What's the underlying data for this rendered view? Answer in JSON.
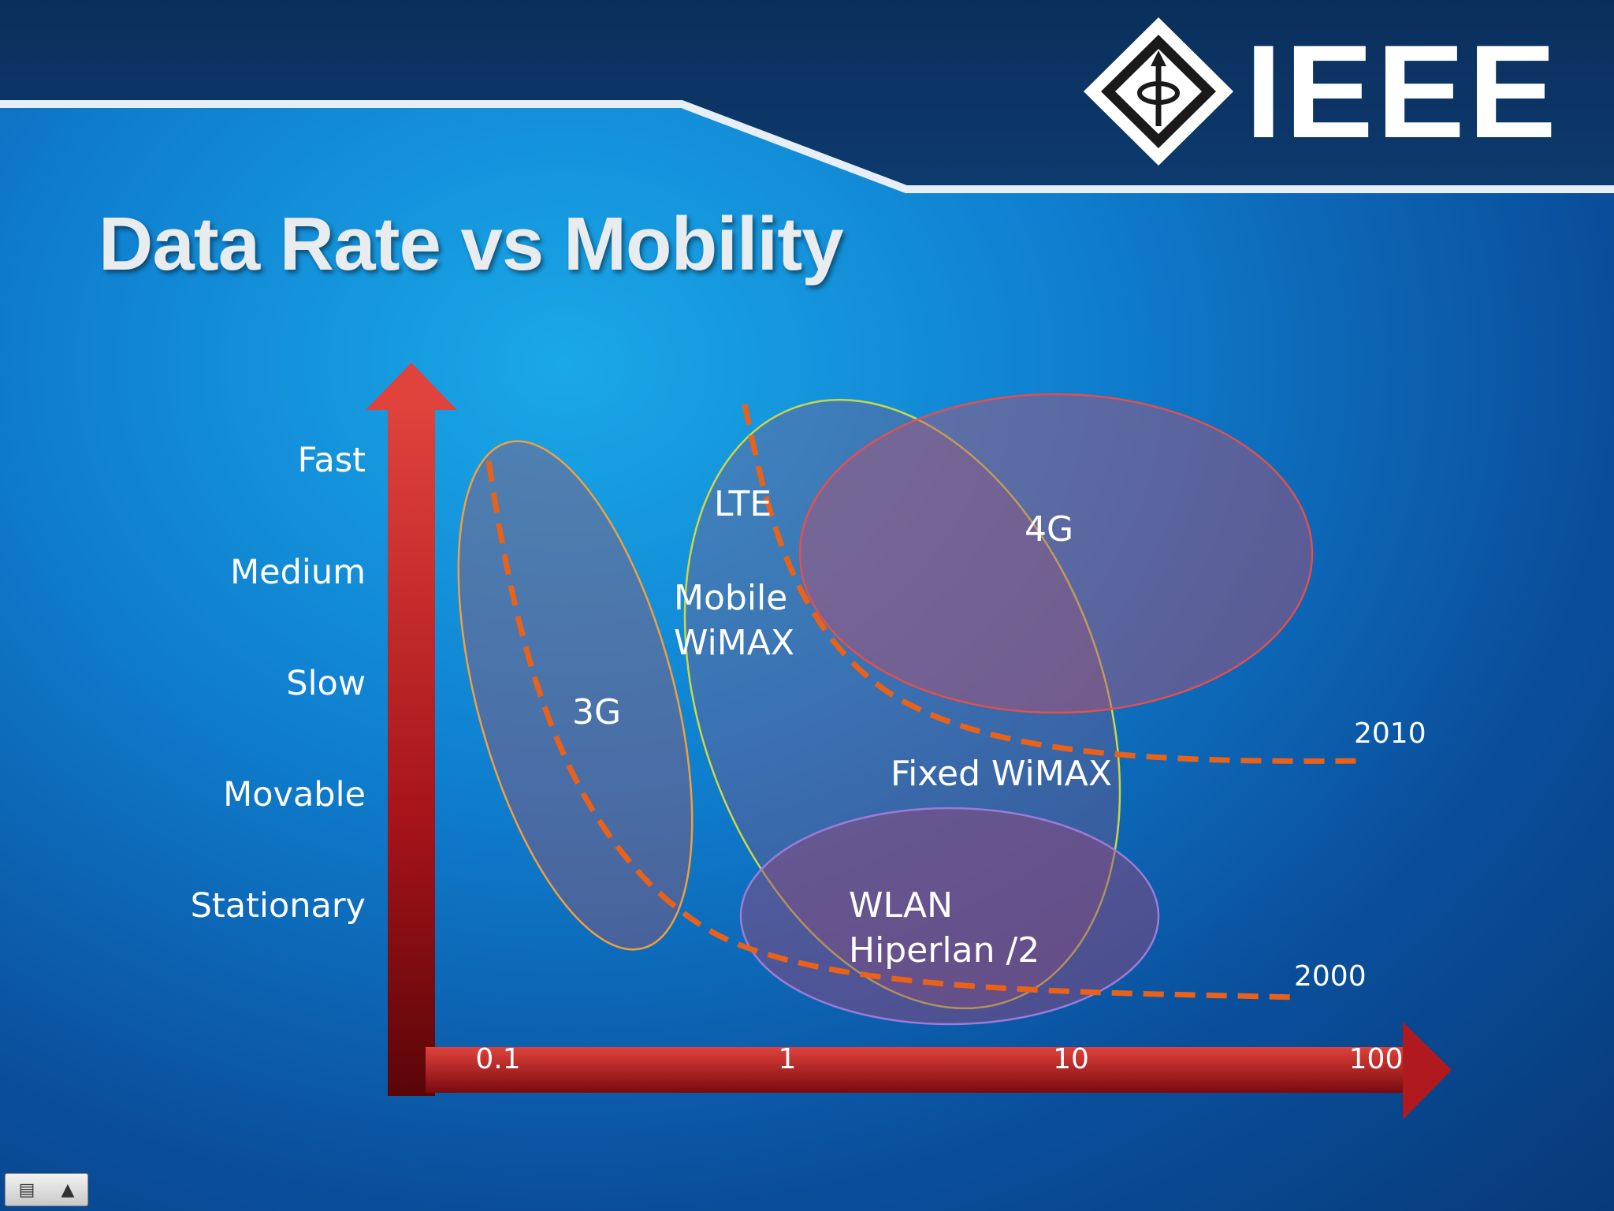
{
  "slide": {
    "title": "Data Rate vs Mobility",
    "logo_text": "IEEE"
  },
  "y_axis": {
    "labels": [
      "Fast",
      "Medium",
      "Slow",
      "Movable",
      "Stationary"
    ]
  },
  "x_axis": {
    "labels": [
      "0.1",
      "1",
      "10",
      "100"
    ]
  },
  "regions": {
    "g3": "3G",
    "lte": "LTE",
    "mobile_wimax": [
      "Mobile",
      "WiMAX"
    ],
    "g4": "4G",
    "fixed_wimax": "Fixed WiMAX",
    "wlan": [
      "WLAN",
      "Hiperlan /2"
    ]
  },
  "curves": {
    "c2010": "2010",
    "c2000": "2000"
  },
  "colors": {
    "axis_red": "#c0191c",
    "curve_orange": "#e8621a",
    "ellipse_3g": "#f0a040",
    "ellipse_wimax": "#c8d84a",
    "ellipse_4g": "#e05050",
    "ellipse_wlan": "#9b7bd8",
    "header": "#0b2f5c"
  },
  "icons": {
    "logo": "ieee-diamond-logo",
    "taskbar_slides": "slides-icon",
    "taskbar_up": "triangle-up-icon"
  }
}
